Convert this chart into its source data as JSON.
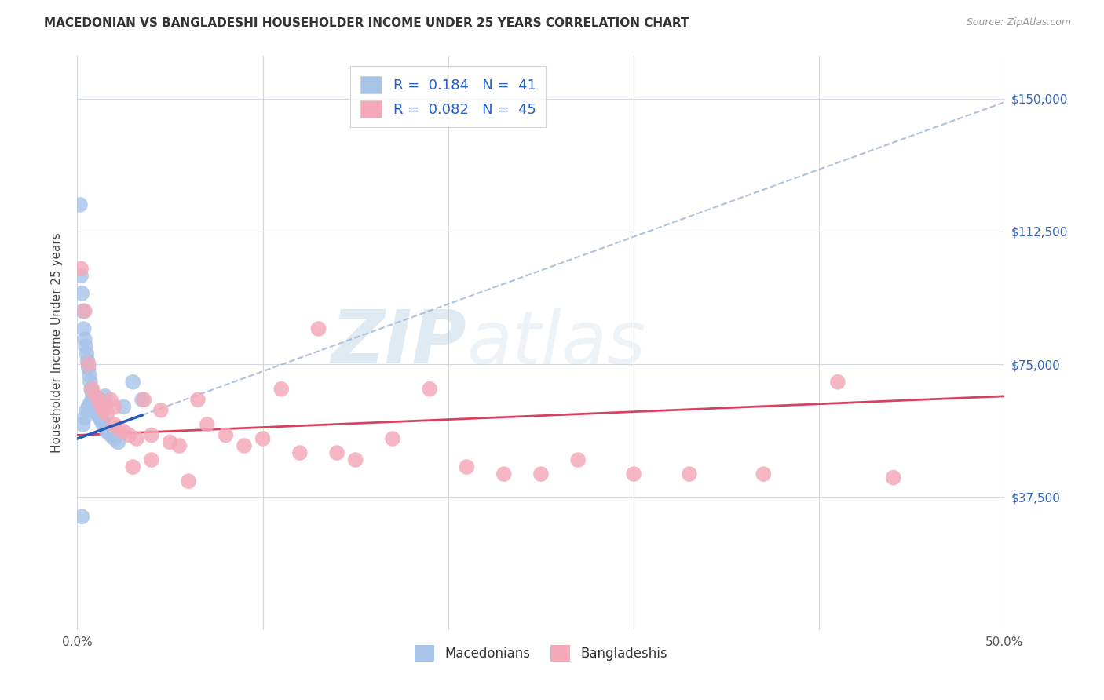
{
  "title": "MACEDONIAN VS BANGLADESHI HOUSEHOLDER INCOME UNDER 25 YEARS CORRELATION CHART",
  "source": "Source: ZipAtlas.com",
  "ylabel": "Householder Income Under 25 years",
  "mac_R": "0.184",
  "mac_N": "41",
  "ban_R": "0.082",
  "ban_N": "45",
  "mac_color": "#a8c4e8",
  "ban_color": "#f4a8b8",
  "mac_line_color": "#2858b8",
  "ban_line_color": "#d84060",
  "mac_dash_color": "#a0b8d8",
  "legend_mac_label": "Macedonians",
  "legend_ban_label": "Bangladeshis",
  "watermark_zip": "ZIP",
  "watermark_atlas": "atlas",
  "xlim": [
    0,
    50
  ],
  "ylim": [
    0,
    162000
  ],
  "ytick_vals": [
    37500,
    75000,
    112500,
    150000
  ],
  "ytick_labels": [
    "$37,500",
    "$75,000",
    "$112,500",
    "$150,000"
  ],
  "xtick_vals": [
    0,
    10,
    20,
    30,
    40,
    50
  ],
  "xtick_labels": [
    "0.0%",
    "",
    "",
    "",
    "",
    "50.0%"
  ],
  "mac_x": [
    0.15,
    0.2,
    0.25,
    0.3,
    0.35,
    0.4,
    0.45,
    0.5,
    0.55,
    0.6,
    0.65,
    0.7,
    0.75,
    0.8,
    0.85,
    0.9,
    0.95,
    1.0,
    1.1,
    1.2,
    1.3,
    1.4,
    1.5,
    1.6,
    1.8,
    2.0,
    2.2,
    2.5,
    3.0,
    3.5,
    0.3,
    0.4,
    0.5,
    0.6,
    0.7,
    0.8,
    1.0,
    1.2,
    1.5,
    2.0,
    0.25
  ],
  "mac_y": [
    120000,
    100000,
    95000,
    90000,
    85000,
    82000,
    80000,
    78000,
    76000,
    74000,
    72000,
    70000,
    68000,
    67000,
    65000,
    64000,
    63000,
    62000,
    61000,
    60000,
    59000,
    58000,
    57000,
    56000,
    55000,
    54000,
    53000,
    63000,
    70000,
    65000,
    58000,
    60000,
    62000,
    63000,
    64000,
    65000,
    63000,
    65000,
    66000,
    56000,
    32000
  ],
  "ban_x": [
    0.2,
    0.4,
    0.6,
    0.8,
    1.0,
    1.2,
    1.4,
    1.6,
    1.8,
    2.0,
    2.2,
    2.5,
    2.8,
    3.2,
    3.6,
    4.0,
    4.5,
    5.0,
    5.5,
    6.5,
    7.0,
    8.0,
    9.0,
    10.0,
    11.0,
    12.0,
    13.0,
    14.0,
    15.0,
    17.0,
    19.0,
    21.0,
    23.0,
    25.0,
    27.0,
    30.0,
    33.0,
    37.0,
    41.0,
    44.0,
    1.5,
    2.0,
    3.0,
    4.0,
    6.0
  ],
  "ban_y": [
    102000,
    90000,
    75000,
    68000,
    66000,
    64000,
    62000,
    61000,
    65000,
    58000,
    57000,
    56000,
    55000,
    54000,
    65000,
    55000,
    62000,
    53000,
    52000,
    65000,
    58000,
    55000,
    52000,
    54000,
    68000,
    50000,
    85000,
    50000,
    48000,
    54000,
    68000,
    46000,
    44000,
    44000,
    48000,
    44000,
    44000,
    44000,
    70000,
    43000,
    63000,
    63000,
    46000,
    48000,
    42000
  ],
  "mac_trend_start": 0,
  "mac_trend_end": 50,
  "mac_solid_end": 3.5,
  "ban_trend_start": 0,
  "ban_trend_end": 50,
  "r_n_color": "#2060d0",
  "tick_color": "#888888"
}
